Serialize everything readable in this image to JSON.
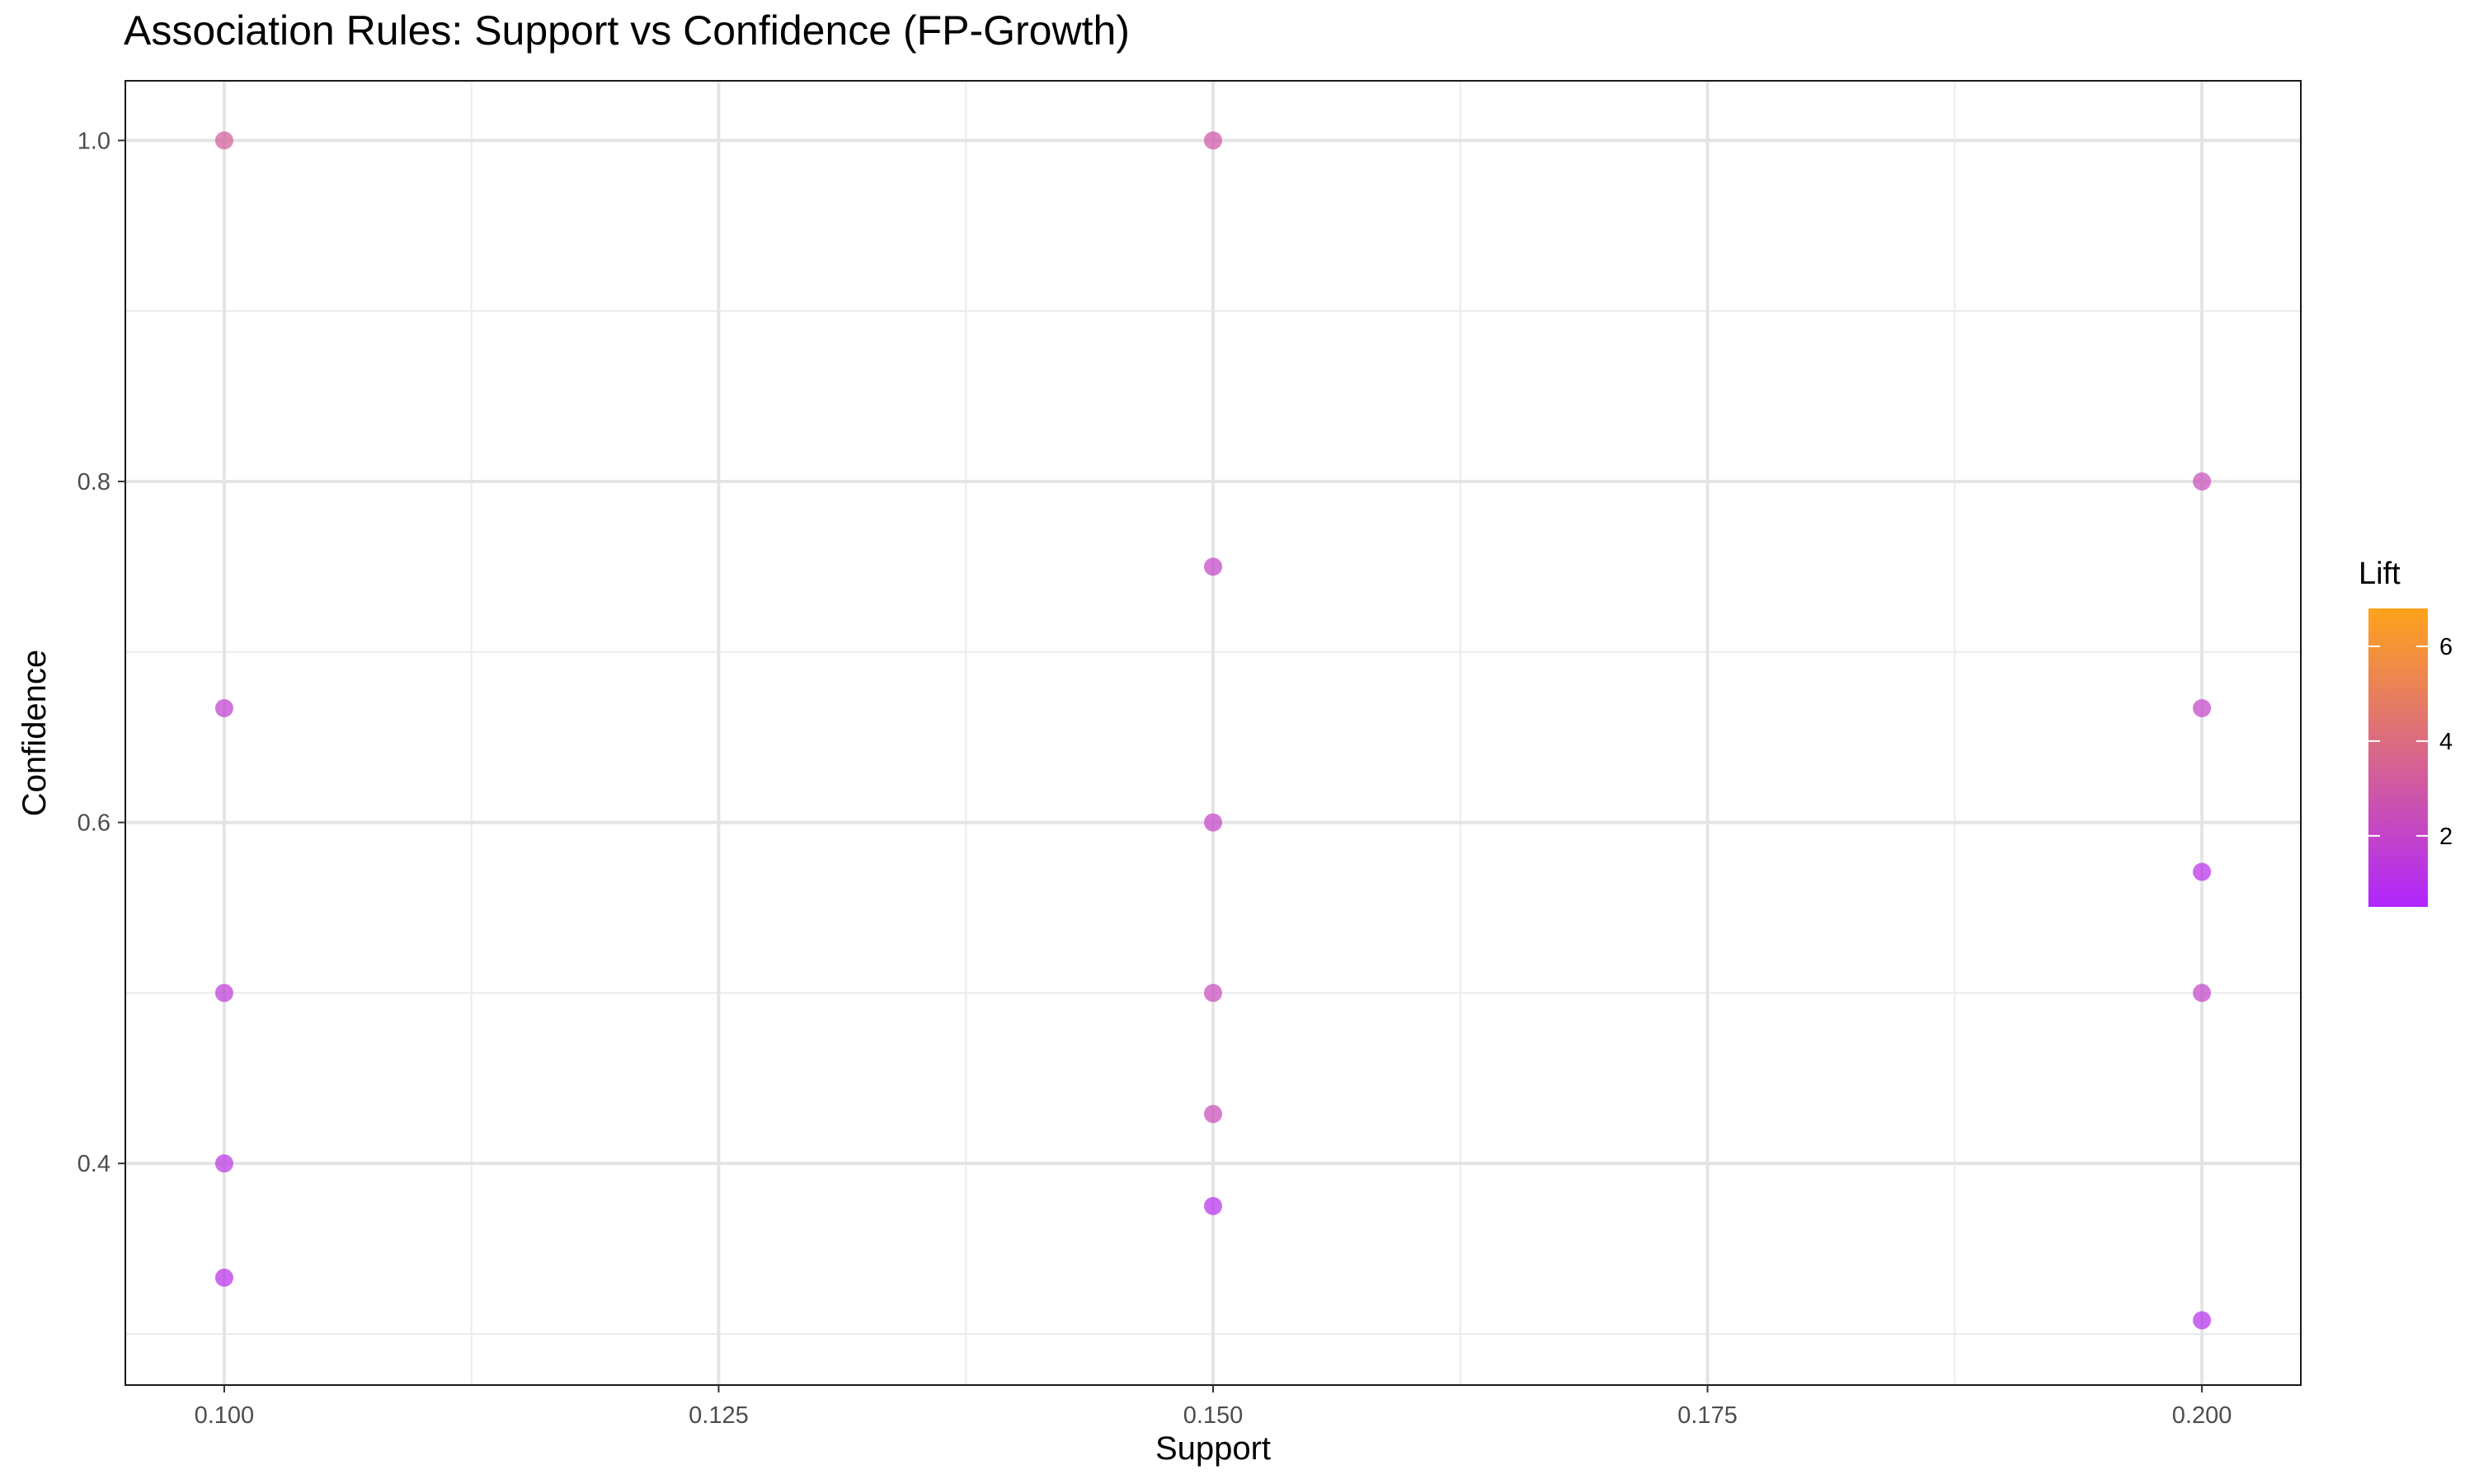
{
  "chart_data": {
    "type": "scatter",
    "title": "Association Rules: Support vs Confidence (FP-Growth)",
    "xlabel": "Support",
    "ylabel": "Confidence",
    "xlim": [
      0.095,
      0.205
    ],
    "ylim": [
      0.27,
      1.035
    ],
    "x_ticks": [
      {
        "value": 0.1,
        "label": "0.100"
      },
      {
        "value": 0.125,
        "label": "0.125"
      },
      {
        "value": 0.15,
        "label": "0.150"
      },
      {
        "value": 0.175,
        "label": "0.175"
      },
      {
        "value": 0.2,
        "label": "0.200"
      }
    ],
    "y_ticks": [
      {
        "value": 0.4,
        "label": "0.4"
      },
      {
        "value": 0.6,
        "label": "0.6"
      },
      {
        "value": 0.8,
        "label": "0.8"
      },
      {
        "value": 1.0,
        "label": "1.0"
      }
    ],
    "grid": true,
    "color_scale": {
      "name": "Lift",
      "min": 0.5,
      "max": 6.8,
      "low_color": "#b026ff",
      "high_color": "#ffa31a",
      "ticks": [
        {
          "value": 2,
          "label": "2"
        },
        {
          "value": 4,
          "label": "4"
        },
        {
          "value": 6,
          "label": "6"
        }
      ],
      "legend_position": "right"
    },
    "points": [
      {
        "support": 0.1,
        "confidence": 1.0,
        "lift": 3.3
      },
      {
        "support": 0.1,
        "confidence": 0.667,
        "lift": 1.8
      },
      {
        "support": 0.1,
        "confidence": 0.5,
        "lift": 1.6
      },
      {
        "support": 0.1,
        "confidence": 0.4,
        "lift": 1.3
      },
      {
        "support": 0.1,
        "confidence": 0.333,
        "lift": 1.1
      },
      {
        "support": 0.15,
        "confidence": 1.0,
        "lift": 2.9
      },
      {
        "support": 0.15,
        "confidence": 0.75,
        "lift": 2.0
      },
      {
        "support": 0.15,
        "confidence": 0.6,
        "lift": 2.0
      },
      {
        "support": 0.15,
        "confidence": 0.5,
        "lift": 2.4
      },
      {
        "support": 0.15,
        "confidence": 0.429,
        "lift": 2.4
      },
      {
        "support": 0.15,
        "confidence": 0.375,
        "lift": 1.0
      },
      {
        "support": 0.2,
        "confidence": 0.8,
        "lift": 2.4
      },
      {
        "support": 0.2,
        "confidence": 0.667,
        "lift": 2.0
      },
      {
        "support": 0.2,
        "confidence": 0.571,
        "lift": 1.1
      },
      {
        "support": 0.2,
        "confidence": 0.5,
        "lift": 2.0
      },
      {
        "support": 0.2,
        "confidence": 0.308,
        "lift": 1.0
      }
    ]
  }
}
